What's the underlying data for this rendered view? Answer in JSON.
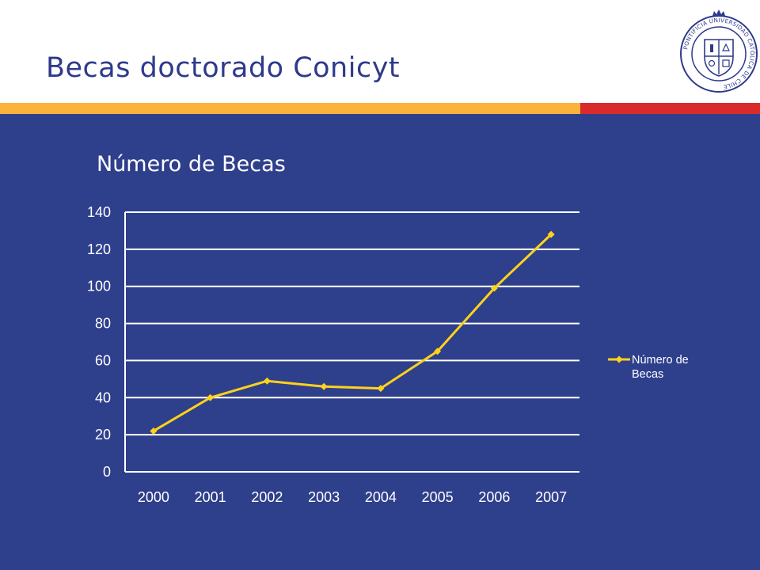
{
  "slide": {
    "title": "Becas doctorado Conicyt"
  },
  "colors": {
    "title_text": "#2e3a8c",
    "background": "#2e3f8c",
    "band_orange": "#fbb33a",
    "band_red": "#d92b2b",
    "series_line": "#ffd21a",
    "gridline": "#ffffff",
    "text": "#ffffff"
  },
  "logo": {
    "icon": "university-seal-icon",
    "ring_text": "PONTIFICIA UNIVERSIDAD CATÓLICA DE CHILE"
  },
  "chart_data": {
    "type": "line",
    "title": "Número de Becas",
    "xlabel": "",
    "ylabel": "",
    "categories": [
      "2000",
      "2001",
      "2002",
      "2003",
      "2004",
      "2005",
      "2006",
      "2007"
    ],
    "series": [
      {
        "name": "Número de Becas",
        "values": [
          22,
          40,
          49,
          46,
          45,
          65,
          99,
          128
        ],
        "marker": "diamond"
      }
    ],
    "ylim": [
      0,
      140
    ],
    "yticks": [
      0,
      20,
      40,
      60,
      80,
      100,
      120,
      140
    ],
    "grid": true,
    "legend": "right"
  }
}
